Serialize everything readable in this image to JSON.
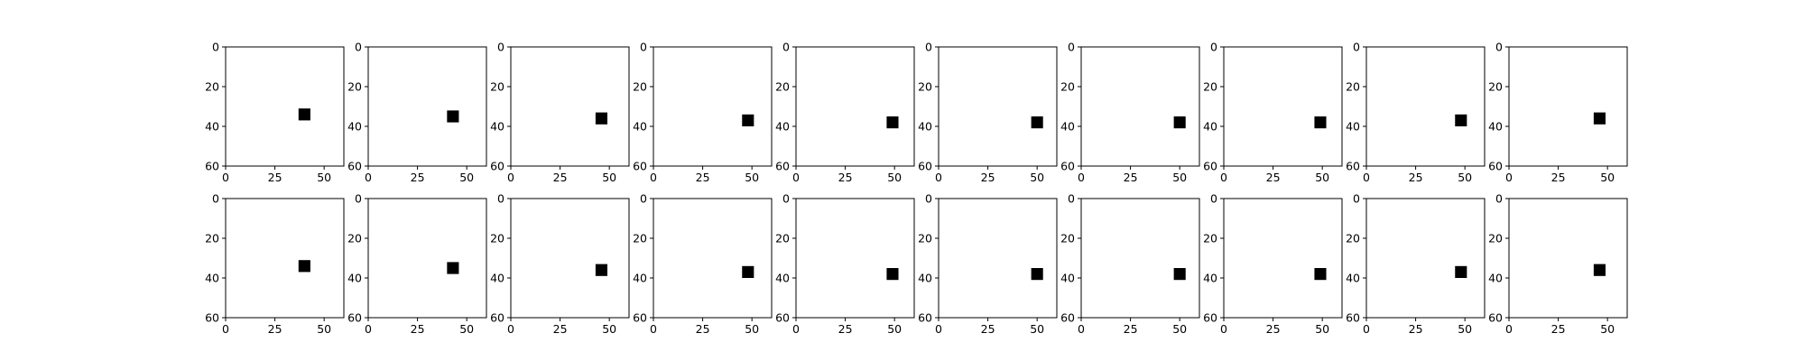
{
  "figure": {
    "rows": 2,
    "cols": 10
  },
  "chart_data": {
    "type": "heatmap",
    "description": "grid of image frames showing a black square on white background",
    "image_extent": {
      "x": [
        0,
        60
      ],
      "y": [
        0,
        60
      ]
    },
    "y_inverted": true,
    "xticks": [
      0,
      25,
      50
    ],
    "yticks": [
      0,
      20,
      40,
      60
    ],
    "marker_size": 6,
    "colors": {
      "background": "#ffffff",
      "square": "#000000",
      "axes": "#000000"
    },
    "grid": false,
    "panels": [
      {
        "row": 0,
        "square_center": [
          40,
          34
        ]
      },
      {
        "row": 0,
        "square_center": [
          43,
          35
        ]
      },
      {
        "row": 0,
        "square_center": [
          46,
          36
        ]
      },
      {
        "row": 0,
        "square_center": [
          48,
          37
        ]
      },
      {
        "row": 0,
        "square_center": [
          49,
          38
        ]
      },
      {
        "row": 0,
        "square_center": [
          50,
          38
        ]
      },
      {
        "row": 0,
        "square_center": [
          50,
          38
        ]
      },
      {
        "row": 0,
        "square_center": [
          49,
          38
        ]
      },
      {
        "row": 0,
        "square_center": [
          48,
          37
        ]
      },
      {
        "row": 0,
        "square_center": [
          46,
          36
        ]
      },
      {
        "row": 1,
        "square_center": [
          40,
          34
        ]
      },
      {
        "row": 1,
        "square_center": [
          43,
          35
        ]
      },
      {
        "row": 1,
        "square_center": [
          46,
          36
        ]
      },
      {
        "row": 1,
        "square_center": [
          48,
          37
        ]
      },
      {
        "row": 1,
        "square_center": [
          49,
          38
        ]
      },
      {
        "row": 1,
        "square_center": [
          50,
          38
        ]
      },
      {
        "row": 1,
        "square_center": [
          50,
          38
        ]
      },
      {
        "row": 1,
        "square_center": [
          49,
          38
        ]
      },
      {
        "row": 1,
        "square_center": [
          48,
          37
        ]
      },
      {
        "row": 1,
        "square_center": [
          46,
          36
        ]
      }
    ]
  }
}
